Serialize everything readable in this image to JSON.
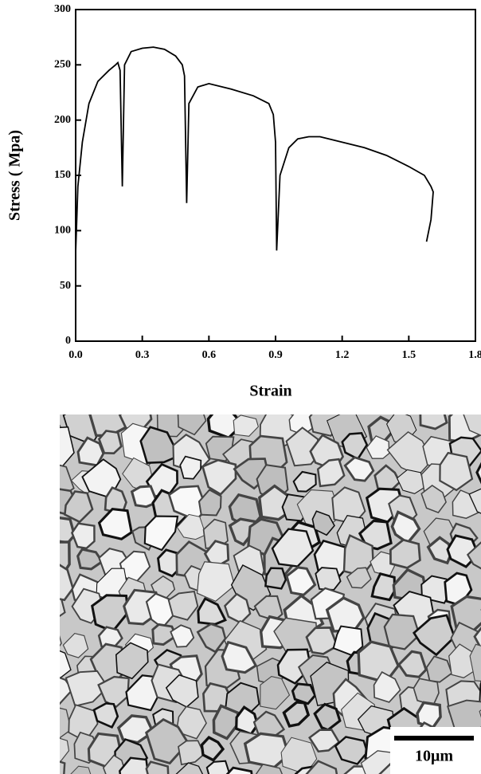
{
  "chart_data": {
    "type": "line",
    "x_label": "Strain",
    "y_label": "Stress ( Mpa)",
    "xlim": [
      0,
      1.8
    ],
    "ylim": [
      0,
      300
    ],
    "xticks": [
      {
        "value": 0,
        "label": "0.0"
      },
      0.3,
      0.6,
      0.9,
      1.2,
      1.5,
      1.8
    ],
    "yticks": [
      0,
      50,
      100,
      150,
      200,
      250,
      300
    ],
    "color": "#000000",
    "x": [
      0.0,
      0.01,
      0.03,
      0.06,
      0.1,
      0.15,
      0.18,
      0.19,
      0.2,
      0.21,
      0.22,
      0.25,
      0.3,
      0.35,
      0.4,
      0.45,
      0.48,
      0.49,
      0.5,
      0.51,
      0.55,
      0.6,
      0.7,
      0.8,
      0.87,
      0.89,
      0.9,
      0.905,
      0.92,
      0.96,
      1.0,
      1.05,
      1.1,
      1.2,
      1.3,
      1.4,
      1.5,
      1.57,
      1.6,
      1.61,
      1.6,
      1.58
    ],
    "values": [
      80,
      140,
      180,
      215,
      235,
      245,
      250,
      252,
      245,
      140,
      250,
      262,
      265,
      266,
      264,
      258,
      250,
      240,
      125,
      215,
      230,
      233,
      228,
      222,
      215,
      205,
      180,
      82,
      150,
      175,
      183,
      185,
      185,
      180,
      175,
      168,
      158,
      150,
      140,
      135,
      110,
      90
    ]
  },
  "image": {
    "scale_bar": "10μm"
  }
}
